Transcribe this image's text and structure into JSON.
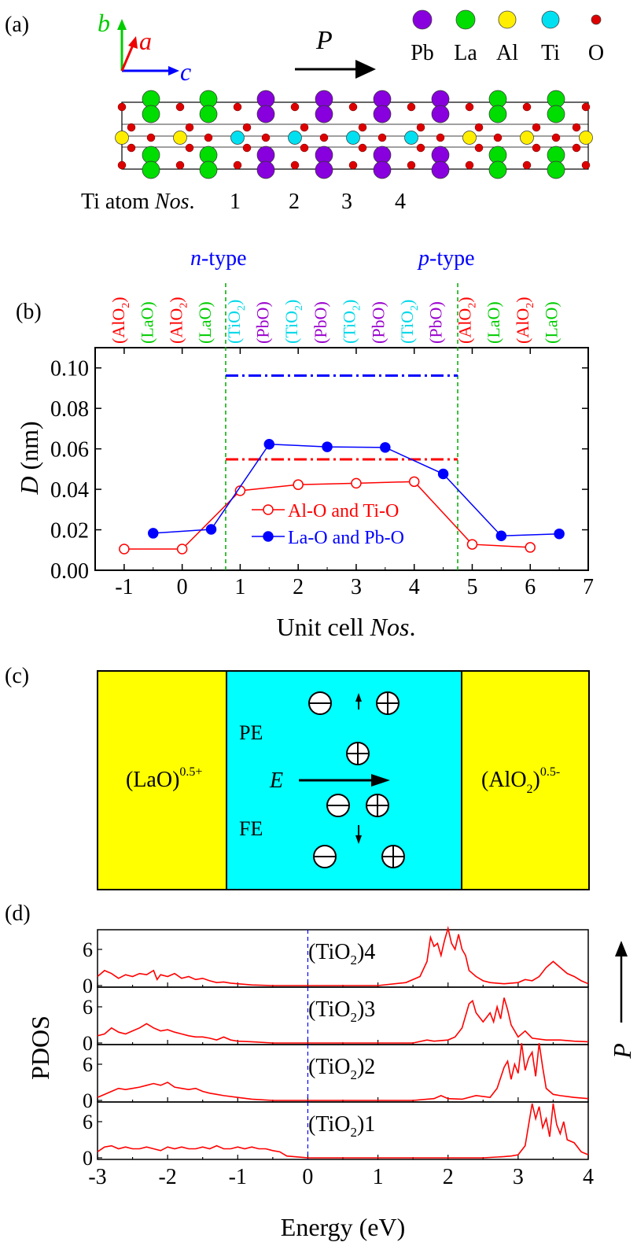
{
  "panels": {
    "a": {
      "label": "(a)",
      "axes": {
        "b": "b",
        "a": "a",
        "c": "c"
      },
      "polarization": "P",
      "legend": [
        {
          "name": "Pb",
          "color": "#8800dd"
        },
        {
          "name": "La",
          "color": "#00dd00"
        },
        {
          "name": "Al",
          "color": "#ffee00"
        },
        {
          "name": "Ti",
          "color": "#00e0f0"
        },
        {
          "name": "O",
          "color": "#dd0000"
        }
      ],
      "ti_atom_prefix": "Ti atom ",
      "ti_atom_nos": "Nos",
      "ti_numbers": [
        "1",
        "2",
        "3",
        "4"
      ]
    },
    "b": {
      "label": "(b)",
      "n_type_italic": "n",
      "p_type_italic": "p",
      "type_suffix": "-type",
      "layers": [
        {
          "text": "(AlO",
          "sub": "2",
          "close": ")",
          "color": "#ff0000"
        },
        {
          "text": "(LaO)",
          "sub": "",
          "close": "",
          "color": "#00cc00"
        },
        {
          "text": "(AlO",
          "sub": "2",
          "close": ")",
          "color": "#ff0000"
        },
        {
          "text": "(LaO)",
          "sub": "",
          "close": "",
          "color": "#00cc00"
        },
        {
          "text": "(TiO",
          "sub": "2",
          "close": ")",
          "color": "#00d8e8"
        },
        {
          "text": "(PbO)",
          "sub": "",
          "close": "",
          "color": "#9900cc"
        },
        {
          "text": "(TiO",
          "sub": "2",
          "close": ")",
          "color": "#00d8e8"
        },
        {
          "text": "(PbO)",
          "sub": "",
          "close": "",
          "color": "#9900cc"
        },
        {
          "text": "(TiO",
          "sub": "2",
          "close": ")",
          "color": "#00d8e8"
        },
        {
          "text": "(PbO)",
          "sub": "",
          "close": "",
          "color": "#9900cc"
        },
        {
          "text": "(TiO",
          "sub": "2",
          "close": ")",
          "color": "#00d8e8"
        },
        {
          "text": "(PbO)",
          "sub": "",
          "close": "",
          "color": "#9900cc"
        },
        {
          "text": "(AlO",
          "sub": "2",
          "close": ")",
          "color": "#ff0000"
        },
        {
          "text": "(LaO)",
          "sub": "",
          "close": "",
          "color": "#00cc00"
        },
        {
          "text": "(AlO",
          "sub": "2",
          "close": ")",
          "color": "#ff0000"
        },
        {
          "text": "(LaO)",
          "sub": "",
          "close": "",
          "color": "#00cc00"
        }
      ]
    },
    "c": {
      "label": "(c)",
      "left_layer": "(LaO)",
      "left_sup": "0.5+",
      "right_layer": "(AlO",
      "right_sub": "2",
      "right_sup": "0.5-",
      "pe": "PE",
      "fe": "FE",
      "field": "E"
    },
    "d": {
      "label": "(d)",
      "ylabel": "PDOS",
      "polarization": "P",
      "panel_labels": [
        {
          "pre": "(TiO",
          "sub": "2",
          "post": ")4"
        },
        {
          "pre": "(TiO",
          "sub": "2",
          "post": ")3"
        },
        {
          "pre": "(TiO",
          "sub": "2",
          "post": ")2"
        },
        {
          "pre": "(TiO",
          "sub": "2",
          "post": ")1"
        }
      ],
      "yticks": [
        "0",
        "6"
      ],
      "xticks": [
        "-3",
        "-2",
        "-1",
        "0",
        "1",
        "2",
        "3",
        "4"
      ],
      "xlabel": "Energy (eV)"
    }
  },
  "chart_data": [
    {
      "type": "line",
      "panel": "b",
      "xlabel_pre": "Unit cell ",
      "xlabel_italic": "Nos",
      "xlabel_post": ".",
      "ylabel_italic": "D",
      "ylabel_rest": " (nm)",
      "xlim": [
        -1.5,
        7
      ],
      "ylim": [
        0,
        0.11
      ],
      "xticks": [
        "-1",
        "0",
        "1",
        "2",
        "3",
        "4",
        "5",
        "6",
        "7"
      ],
      "yticks": [
        "0.00",
        "0.02",
        "0.04",
        "0.06",
        "0.08",
        "0.10"
      ],
      "series": [
        {
          "name": "Al-O and Ti-O",
          "color": "#ff0000",
          "marker": "open-circle",
          "x": [
            -1,
            0,
            1,
            2,
            3,
            4,
            5,
            6
          ],
          "y": [
            0.0105,
            0.0105,
            0.0393,
            0.0423,
            0.043,
            0.0438,
            0.0128,
            0.0113
          ]
        },
        {
          "name": "La-O and Pb-O",
          "color": "#0000ff",
          "marker": "filled-circle",
          "x": [
            -0.5,
            0.5,
            1.5,
            2.5,
            3.5,
            4.5,
            5.5,
            6.5
          ],
          "y": [
            0.0183,
            0.0202,
            0.0623,
            0.061,
            0.0607,
            0.0476,
            0.017,
            0.018
          ]
        }
      ],
      "reference_lines": [
        {
          "color": "#ff0000",
          "y": 0.0548,
          "x": [
            0.75,
            4.75
          ]
        },
        {
          "color": "#0000ff",
          "y": 0.0962,
          "x": [
            0.75,
            4.75
          ]
        }
      ],
      "boundaries": [
        0.75,
        4.75
      ]
    },
    {
      "type": "line",
      "panel": "d",
      "xlim": [
        -3,
        4
      ],
      "ylim": [
        0,
        9
      ],
      "fermi_level": 0,
      "series": [
        {
          "name": "(TiO2)4",
          "color": "#ff0000",
          "x": [
            -3,
            -2.9,
            -2.8,
            -2.7,
            -2.6,
            -2.5,
            -2.4,
            -2.3,
            -2.2,
            -2.15,
            -2.1,
            -2,
            -1.9,
            -1.8,
            -1.7,
            -1.6,
            -1.5,
            -1.4,
            -1.3,
            -1.2,
            -1.1,
            -1.0,
            -0.8,
            -0.5,
            0,
            0.5,
            1.0,
            1.4,
            1.6,
            1.7,
            1.75,
            1.8,
            1.85,
            1.9,
            1.95,
            2.0,
            2.05,
            2.1,
            2.15,
            2.2,
            2.25,
            2.3,
            2.4,
            2.5,
            2.6,
            2.8,
            3.0,
            3.1,
            3.2,
            3.3,
            3.4,
            3.5,
            3.6,
            3.7,
            3.8,
            3.9,
            4.0
          ],
          "y": [
            1.5,
            2.5,
            2.0,
            1.2,
            1.8,
            1.5,
            2.0,
            1.8,
            2.5,
            1.0,
            1.8,
            1.5,
            2.0,
            1.2,
            1.5,
            1.0,
            1.2,
            0.8,
            0.5,
            0.6,
            0.4,
            0.3,
            0.1,
            0,
            0,
            0,
            0,
            0.5,
            1.5,
            4.0,
            8.0,
            6.5,
            7.0,
            5.0,
            7.5,
            9.5,
            7.0,
            6.0,
            8.5,
            6.0,
            5.0,
            2.5,
            1.5,
            0.8,
            0.5,
            0.3,
            0.5,
            1.0,
            0.8,
            1.5,
            3.0,
            4.0,
            3.0,
            2.0,
            1.5,
            0.8,
            0.3
          ]
        },
        {
          "name": "(TiO2)3",
          "color": "#ff0000",
          "x": [
            -3,
            -2.9,
            -2.8,
            -2.7,
            -2.6,
            -2.5,
            -2.4,
            -2.3,
            -2.2,
            -2.1,
            -2,
            -1.9,
            -1.8,
            -1.7,
            -1.6,
            -1.5,
            -1.4,
            -1.3,
            -1.2,
            -1.1,
            -1.0,
            -0.8,
            -0.5,
            0,
            0.5,
            1.0,
            1.5,
            1.7,
            1.8,
            2.0,
            2.1,
            2.2,
            2.3,
            2.35,
            2.4,
            2.5,
            2.6,
            2.65,
            2.7,
            2.75,
            2.8,
            2.85,
            2.9,
            3.0,
            3.1,
            3.2,
            3.4,
            3.6,
            3.8,
            4.0
          ],
          "y": [
            1.2,
            1.5,
            2.5,
            1.8,
            1.5,
            2.0,
            2.5,
            3.2,
            2.5,
            2.0,
            2.2,
            1.8,
            1.5,
            1.2,
            1.0,
            1.0,
            0.8,
            0.5,
            1.0,
            0.5,
            0.3,
            0.2,
            0,
            0,
            0,
            0,
            0,
            0.5,
            0.3,
            0.5,
            1.0,
            2.5,
            6.5,
            7.0,
            5.0,
            3.5,
            5.0,
            3.5,
            6.0,
            4.0,
            7.5,
            5.5,
            3.0,
            1.0,
            2.0,
            0.8,
            0.5,
            0.5,
            0.3,
            0.2
          ]
        },
        {
          "name": "(TiO2)2",
          "color": "#ff0000",
          "x": [
            -3,
            -2.9,
            -2.8,
            -2.7,
            -2.6,
            -2.5,
            -2.4,
            -2.3,
            -2.2,
            -2.1,
            -2,
            -1.9,
            -1.8,
            -1.7,
            -1.6,
            -1.5,
            -1.4,
            -1.3,
            -1.2,
            -1.0,
            -0.8,
            -0.5,
            0,
            0.5,
            1.0,
            1.5,
            1.8,
            1.9,
            2.0,
            2.2,
            2.4,
            2.6,
            2.7,
            2.8,
            2.85,
            2.9,
            2.95,
            3.0,
            3.05,
            3.1,
            3.15,
            3.2,
            3.25,
            3.3,
            3.35,
            3.4,
            3.5,
            3.6,
            3.8,
            4.0
          ],
          "y": [
            0.5,
            1.0,
            1.5,
            2.0,
            1.8,
            2.0,
            2.2,
            2.5,
            2.8,
            2.5,
            3.0,
            2.2,
            2.0,
            1.8,
            2.0,
            1.5,
            1.2,
            1.0,
            0.8,
            0.5,
            0.2,
            0,
            0,
            0,
            0,
            0,
            0.3,
            0.8,
            0.3,
            0.2,
            0.8,
            0.5,
            2.0,
            5.5,
            6.5,
            3.5,
            6.0,
            4.5,
            9.5,
            5.0,
            7.0,
            8.0,
            4.0,
            9.5,
            5.5,
            2.0,
            1.0,
            0.8,
            0.5,
            0.3
          ]
        },
        {
          "name": "(TiO2)1",
          "color": "#ff0000",
          "x": [
            -3,
            -2.9,
            -2.8,
            -2.7,
            -2.6,
            -2.5,
            -2.4,
            -2.3,
            -2.2,
            -2.1,
            -2,
            -1.9,
            -1.8,
            -1.7,
            -1.6,
            -1.5,
            -1.4,
            -1.3,
            -1.2,
            -1.1,
            -1.0,
            -0.9,
            -0.8,
            -0.7,
            -0.6,
            -0.5,
            -0.4,
            -0.3,
            0,
            0.5,
            1.0,
            1.5,
            2.0,
            2.5,
            2.8,
            2.9,
            3.0,
            3.1,
            3.2,
            3.25,
            3.3,
            3.35,
            3.4,
            3.45,
            3.5,
            3.55,
            3.6,
            3.65,
            3.7,
            3.8,
            3.9,
            4.0
          ],
          "y": [
            1.0,
            1.8,
            2.0,
            1.5,
            1.8,
            1.5,
            1.5,
            1.8,
            1.5,
            1.2,
            1.8,
            1.5,
            1.8,
            1.5,
            1.5,
            1.8,
            1.5,
            2.0,
            1.5,
            1.5,
            1.8,
            1.5,
            1.8,
            1.5,
            1.5,
            1.2,
            1.0,
            0.3,
            0,
            0,
            0,
            0,
            0,
            0,
            0.2,
            0.3,
            0.5,
            2.0,
            9.0,
            6.5,
            8.5,
            5.0,
            6.5,
            3.5,
            9.0,
            5.5,
            4.0,
            6.0,
            3.0,
            2.5,
            1.0,
            0.5
          ]
        }
      ]
    }
  ]
}
